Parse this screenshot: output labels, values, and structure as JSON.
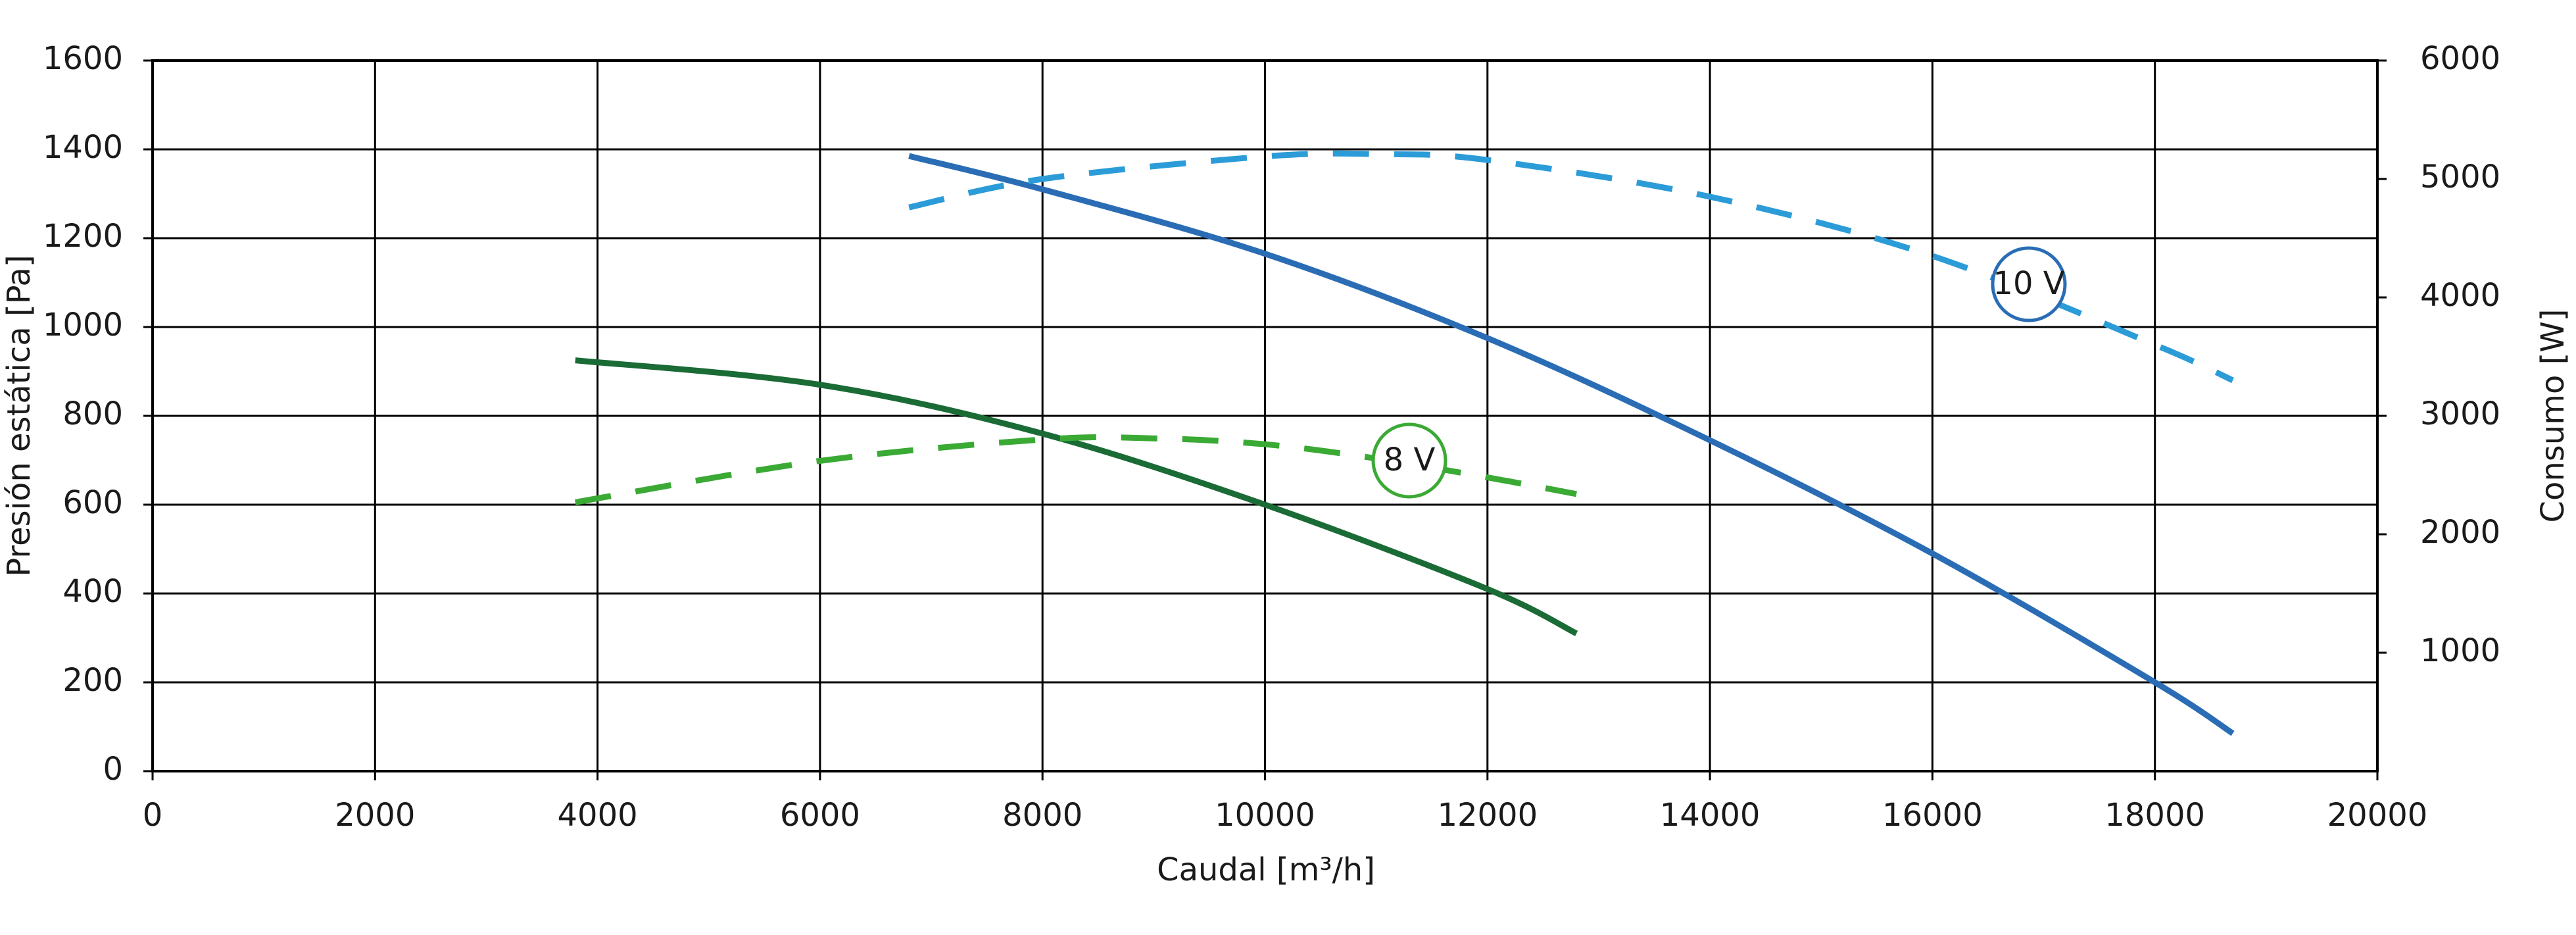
{
  "chart_data": {
    "type": "line",
    "x_label": "Caudal [m³/h]",
    "y_label": "Presión estática [Pa]",
    "y2_label": "Consumo [W]",
    "xlim": [
      0,
      20000
    ],
    "xticks": [
      0,
      2000,
      4000,
      6000,
      8000,
      10000,
      12000,
      14000,
      16000,
      18000,
      20000
    ],
    "ylim": [
      0,
      1600
    ],
    "yticks": [
      0,
      200,
      400,
      600,
      800,
      1000,
      1200,
      1400,
      1600
    ],
    "y2lim": [
      0,
      6000
    ],
    "y2ticks": [
      1000,
      2000,
      3000,
      4000,
      5000,
      6000
    ],
    "grid": true,
    "series": [
      {
        "color": "#2a6db5",
        "dashed": false,
        "x": [
          6800,
          8000,
          10000,
          12000,
          14000,
          16000,
          18000,
          18700
        ],
        "values": [
          1385,
          1310,
          1165,
          975,
          745,
          490,
          200,
          85
        ]
      },
      {
        "color": "#2b9cd8",
        "dashed": true,
        "axis": "y2",
        "x": [
          6800,
          8000,
          10000,
          11000,
          12000,
          14000,
          16000,
          18000,
          18700
        ],
        "values": [
          4760,
          5000,
          5190,
          5210,
          5160,
          4850,
          4350,
          3600,
          3300
        ]
      },
      {
        "color": "#1a6b35",
        "dashed": false,
        "x": [
          3800,
          6000,
          8000,
          10000,
          12000,
          12800
        ],
        "values": [
          925,
          870,
          760,
          600,
          410,
          310
        ]
      },
      {
        "color": "#3aaa35",
        "dashed": true,
        "axis": "y2",
        "x": [
          3800,
          6000,
          8000,
          9000,
          10000,
          11000,
          12000,
          12800
        ],
        "values": [
          2270,
          2620,
          2800,
          2810,
          2760,
          2640,
          2480,
          2340
        ]
      }
    ],
    "annotations": [
      {
        "text": "10 V",
        "color": "#2a6db5"
      },
      {
        "text": "8 V",
        "color": "#3aaa35"
      }
    ]
  }
}
